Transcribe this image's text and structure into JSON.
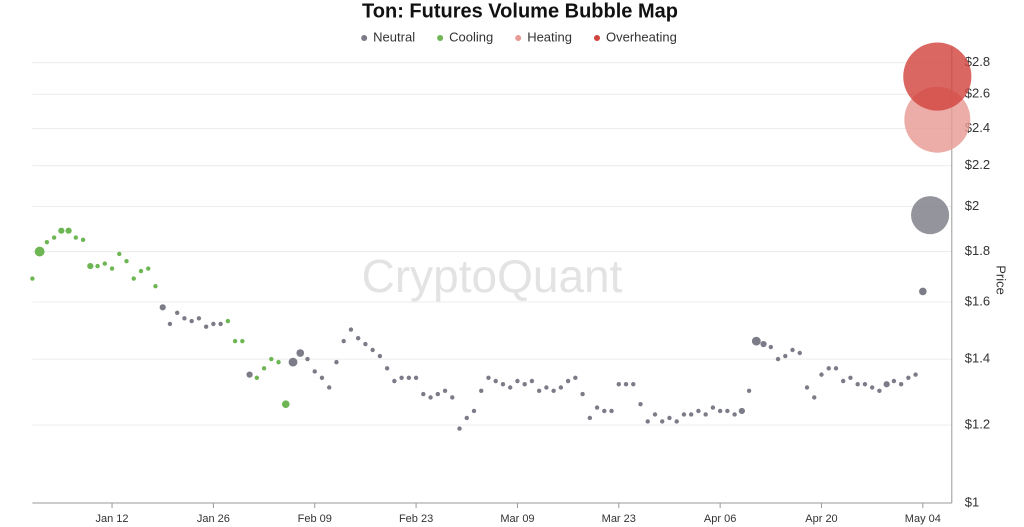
{
  "chart_data": {
    "type": "bubble",
    "title": "Ton: Futures Volume Bubble Map",
    "watermark": "CryptoQuant",
    "y_label": "Price",
    "y_scale": "log",
    "grid": true,
    "legend": "top",
    "xlim": [
      "Jan 01",
      "May 08"
    ],
    "xticks": [
      "Jan 12",
      "Jan 26",
      "Feb 09",
      "Feb 23",
      "Mar 09",
      "Mar 23",
      "Apr 06",
      "Apr 20",
      "May 04"
    ],
    "ylim": [
      1,
      2.85
    ],
    "yticks": [
      {
        "value": 1,
        "label": "$1"
      },
      {
        "value": 1.2,
        "label": "$1.2"
      },
      {
        "value": 1.4,
        "label": "$1.4"
      },
      {
        "value": 1.6,
        "label": "$1.6"
      },
      {
        "value": 1.8,
        "label": "$1.8"
      },
      {
        "value": 2,
        "label": "$2"
      },
      {
        "value": 2.2,
        "label": "$2.2"
      },
      {
        "value": 2.4,
        "label": "$2.4"
      },
      {
        "value": 2.6,
        "label": "$2.6"
      },
      {
        "value": 2.8,
        "label": "$2.8"
      }
    ],
    "series": [
      {
        "name": "Neutral",
        "color": "#7c7c88",
        "x": [
          "Jan 19",
          "Jan 20",
          "Jan 21",
          "Jan 22",
          "Jan 23",
          "Jan 24",
          "Jan 25",
          "Jan 26",
          "Jan 27",
          "Jan 31",
          "Feb 06",
          "Feb 07",
          "Feb 08",
          "Feb 09",
          "Feb 10",
          "Feb 11",
          "Feb 12",
          "Feb 13",
          "Feb 14",
          "Feb 15",
          "Feb 16",
          "Feb 17",
          "Feb 18",
          "Feb 19",
          "Feb 20",
          "Feb 21",
          "Feb 22",
          "Feb 23",
          "Feb 24",
          "Feb 25",
          "Feb 26",
          "Feb 27",
          "Feb 28",
          "Mar 01",
          "Mar 02",
          "Mar 03",
          "Mar 04",
          "Mar 05",
          "Mar 06",
          "Mar 07",
          "Mar 08",
          "Mar 09",
          "Mar 10",
          "Mar 11",
          "Mar 12",
          "Mar 13",
          "Mar 14",
          "Mar 15",
          "Mar 16",
          "Mar 17",
          "Mar 18",
          "Mar 19",
          "Mar 20",
          "Mar 21",
          "Mar 22",
          "Mar 23",
          "Mar 24",
          "Mar 25",
          "Mar 26",
          "Mar 27",
          "Mar 28",
          "Mar 29",
          "Mar 30",
          "Mar 31",
          "Apr 01",
          "Apr 02",
          "Apr 03",
          "Apr 04",
          "Apr 05",
          "Apr 06",
          "Apr 07",
          "Apr 08",
          "Apr 09",
          "Apr 10",
          "Apr 11",
          "Apr 12",
          "Apr 13",
          "Apr 14",
          "Apr 15",
          "Apr 16",
          "Apr 17",
          "Apr 18",
          "Apr 19",
          "Apr 20",
          "Apr 21",
          "Apr 22",
          "Apr 23",
          "Apr 24",
          "Apr 25",
          "Apr 26",
          "Apr 27",
          "Apr 28",
          "Apr 29",
          "Apr 30",
          "May 01",
          "May 02",
          "May 03",
          "May 04",
          "May 05"
        ],
        "values": [
          1.58,
          1.52,
          1.56,
          1.54,
          1.53,
          1.54,
          1.51,
          1.52,
          1.52,
          1.35,
          1.39,
          1.42,
          1.4,
          1.36,
          1.34,
          1.31,
          1.39,
          1.46,
          1.5,
          1.47,
          1.45,
          1.43,
          1.41,
          1.37,
          1.33,
          1.34,
          1.34,
          1.34,
          1.29,
          1.28,
          1.29,
          1.3,
          1.28,
          1.19,
          1.22,
          1.24,
          1.3,
          1.34,
          1.33,
          1.32,
          1.31,
          1.33,
          1.32,
          1.33,
          1.3,
          1.31,
          1.3,
          1.31,
          1.33,
          1.34,
          1.29,
          1.22,
          1.25,
          1.24,
          1.24,
          1.32,
          1.32,
          1.32,
          1.26,
          1.21,
          1.23,
          1.21,
          1.22,
          1.21,
          1.23,
          1.23,
          1.24,
          1.23,
          1.25,
          1.24,
          1.24,
          1.23,
          1.24,
          1.3,
          1.46,
          1.45,
          1.44,
          1.4,
          1.41,
          1.43,
          1.42,
          1.31,
          1.28,
          1.35,
          1.37,
          1.37,
          1.33,
          1.34,
          1.32,
          1.32,
          1.31,
          1.3,
          1.32,
          1.33,
          1.32,
          1.34,
          1.35,
          1.64,
          1.96
        ],
        "sizes": [
          2,
          1,
          1,
          1,
          1,
          1,
          1,
          1,
          1,
          2,
          4,
          3,
          1,
          1,
          1,
          1,
          1,
          1,
          1,
          1,
          1,
          1,
          1,
          1,
          1,
          1,
          1,
          1,
          1,
          1,
          1,
          1,
          1,
          1,
          1,
          1,
          1,
          1,
          1,
          1,
          1,
          1,
          1,
          1,
          1,
          1,
          1,
          1,
          1,
          1,
          1,
          1,
          1,
          1,
          1,
          1,
          1,
          1,
          1,
          1,
          1,
          1,
          1,
          1,
          1,
          1,
          1,
          1,
          1,
          1,
          1,
          1,
          2,
          1,
          4,
          2,
          1,
          1,
          1,
          1,
          1,
          1,
          1,
          1,
          1,
          1,
          1,
          1,
          1,
          1,
          1,
          1,
          2,
          1,
          1,
          1,
          1,
          3,
          75
        ]
      },
      {
        "name": "Cooling",
        "color": "#6db653",
        "x": [
          "Jan 01",
          "Jan 02",
          "Jan 03",
          "Jan 04",
          "Jan 05",
          "Jan 06",
          "Jan 07",
          "Jan 08",
          "Jan 09",
          "Jan 10",
          "Jan 11",
          "Jan 12",
          "Jan 13",
          "Jan 14",
          "Jan 15",
          "Jan 16",
          "Jan 17",
          "Jan 18",
          "Jan 28",
          "Jan 29",
          "Jan 30",
          "Feb 01",
          "Feb 02",
          "Feb 03",
          "Feb 04",
          "Feb 05"
        ],
        "values": [
          1.69,
          1.8,
          1.84,
          1.86,
          1.89,
          1.89,
          1.86,
          1.85,
          1.74,
          1.74,
          1.75,
          1.73,
          1.79,
          1.76,
          1.69,
          1.72,
          1.73,
          1.66,
          1.53,
          1.46,
          1.46,
          1.34,
          1.37,
          1.4,
          1.39,
          1.26
        ],
        "sizes": [
          1,
          5,
          1,
          1,
          2,
          2,
          1,
          1,
          2,
          1,
          1,
          1,
          1,
          1,
          1,
          1,
          1,
          1,
          1,
          1,
          1,
          1,
          1,
          1,
          1,
          3
        ]
      },
      {
        "name": "Heating",
        "color": "#e89a94",
        "x": [
          "May 06"
        ],
        "values": [
          2.45
        ],
        "sizes": [
          225
        ]
      },
      {
        "name": "Overheating",
        "color": "#d2453f",
        "x": [
          "May 06"
        ],
        "values": [
          2.71
        ],
        "sizes": [
          240
        ]
      }
    ]
  }
}
